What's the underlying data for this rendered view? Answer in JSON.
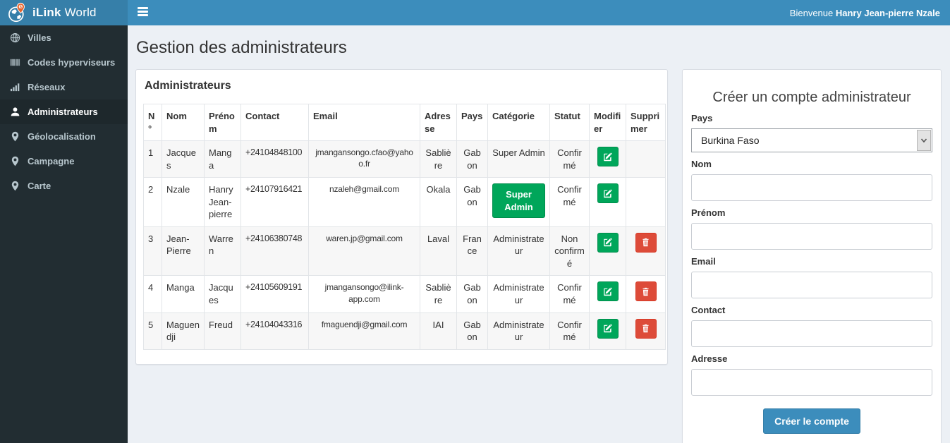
{
  "brand": {
    "bold": "iLink",
    "regular": "World"
  },
  "topbar": {
    "welcome_prefix": "Bienvenue",
    "user_name": "Hanry Jean-pierre Nzale"
  },
  "sidebar": {
    "items": [
      {
        "key": "villes",
        "label": "Villes",
        "icon": "globe-icon",
        "active": false
      },
      {
        "key": "codes-hyperviseurs",
        "label": "Codes hyperviseurs",
        "icon": "barcode-icon",
        "active": false
      },
      {
        "key": "reseaux",
        "label": "Réseaux",
        "icon": "signal-icon",
        "active": false
      },
      {
        "key": "administrateurs",
        "label": "Administrateurs",
        "icon": "user-icon",
        "active": true
      },
      {
        "key": "geolocalisation",
        "label": "Géolocalisation",
        "icon": "map-marker-icon",
        "active": false
      },
      {
        "key": "campagne",
        "label": "Campagne",
        "icon": "map-marker-icon",
        "active": false
      },
      {
        "key": "carte",
        "label": "Carte",
        "icon": "map-marker-icon",
        "active": false
      }
    ]
  },
  "page": {
    "title": "Gestion des administrateurs"
  },
  "admin_panel": {
    "title": "Administrateurs",
    "table": {
      "columns": [
        {
          "key": "no",
          "label": "N°"
        },
        {
          "key": "nom",
          "label": "Nom"
        },
        {
          "key": "prenom",
          "label": "Prénom"
        },
        {
          "key": "contact",
          "label": "Contact"
        },
        {
          "key": "email",
          "label": "Email"
        },
        {
          "key": "adresse",
          "label": "Adresse"
        },
        {
          "key": "pays",
          "label": "Pays"
        },
        {
          "key": "categorie",
          "label": "Catégorie"
        },
        {
          "key": "statut",
          "label": "Statut"
        },
        {
          "key": "modifier",
          "label": "Modifier"
        },
        {
          "key": "supprimer",
          "label": "Supprimer"
        }
      ],
      "rows": [
        {
          "no": "1",
          "nom": "Jacques",
          "prenom": "Manga",
          "contact": "+24104848100",
          "email": "jmangansongo.cfao@yahoo.fr",
          "adresse": "Sablière",
          "pays": "Gabon",
          "categorie": "Super Admin",
          "categorie_style": "text",
          "statut": "Confirmé",
          "deletable": false
        },
        {
          "no": "2",
          "nom": "Nzale",
          "prenom": "Hanry Jean-pierre",
          "contact": "+24107916421",
          "email": "nzaleh@gmail.com",
          "adresse": "Okala",
          "pays": "Gabon",
          "categorie": "Super Admin",
          "categorie_style": "button",
          "statut": "Confirmé",
          "deletable": false
        },
        {
          "no": "3",
          "nom": "Jean-Pierre",
          "prenom": "Warren",
          "contact": "+24106380748",
          "email": "waren.jp@gmail.com",
          "adresse": "Laval",
          "pays": "France",
          "categorie": "Administrateur",
          "categorie_style": "text",
          "statut": "Non confirmé",
          "deletable": true
        },
        {
          "no": "4",
          "nom": "Manga",
          "prenom": "Jacques",
          "contact": "+24105609191",
          "email": "jmangansongo@ilink-app.com",
          "adresse": "Sablière",
          "pays": "Gabon",
          "categorie": "Administrateur",
          "categorie_style": "text",
          "statut": "Confirmé",
          "deletable": true
        },
        {
          "no": "5",
          "nom": "Maguendji",
          "prenom": "Freud",
          "contact": "+24104043316",
          "email": "fmaguendji@gmail.com",
          "adresse": "IAI",
          "pays": "Gabon",
          "categorie": "Administrateur",
          "categorie_style": "text",
          "statut": "Confirmé",
          "deletable": true
        }
      ],
      "edit_icon": "edit-icon",
      "delete_icon": "trash-icon"
    }
  },
  "form": {
    "title": "Créer un compte administrateur",
    "fields": [
      {
        "key": "pays",
        "label": "Pays",
        "type": "select",
        "value": "Burkina Faso"
      },
      {
        "key": "nom",
        "label": "Nom",
        "type": "text",
        "value": ""
      },
      {
        "key": "prenom",
        "label": "Prénom",
        "type": "text",
        "value": ""
      },
      {
        "key": "email",
        "label": "Email",
        "type": "text",
        "value": ""
      },
      {
        "key": "contact",
        "label": "Contact",
        "type": "text",
        "value": ""
      },
      {
        "key": "adresse",
        "label": "Adresse",
        "type": "text",
        "value": ""
      }
    ],
    "submit_label": "Créer le compte"
  },
  "colors": {
    "topbar": "#3c8dbc",
    "logo_background": "#367fa9",
    "sidebar": "#222d32",
    "sidebar_active": "#1e282c",
    "success_green": "#00a65a",
    "danger_red": "#dd4b39",
    "content_background": "#ecf0f5",
    "pin_orange": "#e8642c"
  }
}
